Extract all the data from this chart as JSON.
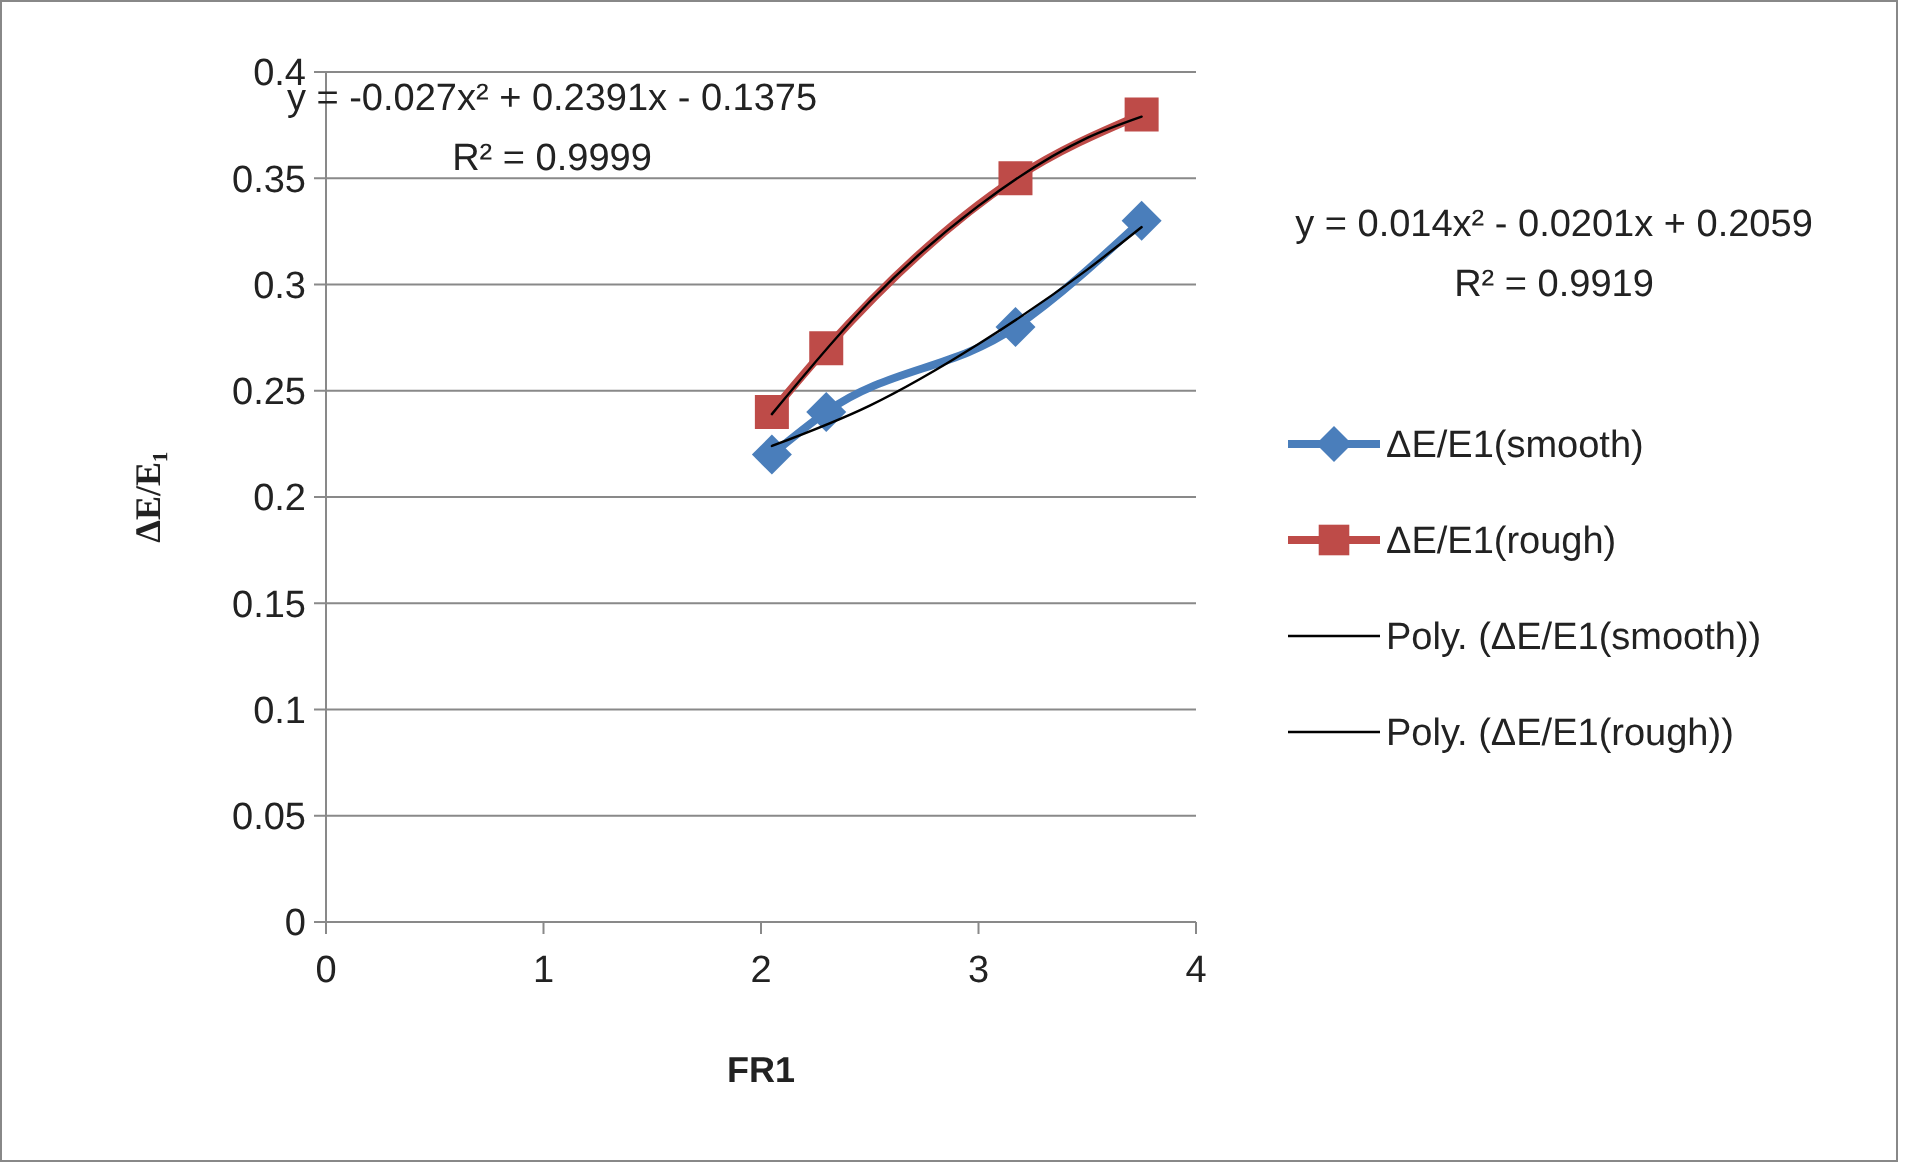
{
  "chart_data": {
    "type": "line",
    "xlabel": "FR1",
    "ylabel": "ΔE/E₁",
    "xlim": [
      0,
      4
    ],
    "xticks": [
      0,
      1,
      2,
      3,
      4
    ],
    "ylim": [
      0,
      0.4
    ],
    "yticks": [
      0,
      0.05,
      0.1,
      0.15,
      0.2,
      0.25,
      0.3,
      0.35,
      0.4
    ],
    "grid": "y",
    "legend": "right",
    "annotations": [
      "y = -0.027x² + 0.2391x - 0.1375\nR² = 0.9999",
      "y = 0.014x² - 0.0201x + 0.2059\nR² = 0.9919"
    ],
    "series": [
      {
        "name": "ΔE/E1(smooth)",
        "color": "#4a7ebb",
        "marker": "diamond",
        "x": [
          2.05,
          2.3,
          3.17,
          3.75
        ],
        "values": [
          0.22,
          0.24,
          0.28,
          0.33
        ]
      },
      {
        "name": "ΔE/E1(rough)",
        "color": "#be4b48",
        "marker": "square",
        "x": [
          2.05,
          2.3,
          3.17,
          3.75
        ],
        "values": [
          0.24,
          0.27,
          0.35,
          0.38
        ]
      },
      {
        "name": "Poly. (ΔE/E1(smooth))",
        "color": "#000000",
        "marker": "none",
        "x": [
          2.05,
          2.5,
          3,
          3.5,
          3.75
        ],
        "values": [
          0.224,
          0.243,
          0.272,
          0.307,
          0.327
        ]
      },
      {
        "name": "Poly. (ΔE/E1(rough))",
        "color": "#000000",
        "marker": "none",
        "x": [
          2.05,
          2.5,
          3,
          3.5,
          3.75
        ],
        "values": [
          0.239,
          0.292,
          0.337,
          0.369,
          0.379
        ]
      }
    ]
  }
}
